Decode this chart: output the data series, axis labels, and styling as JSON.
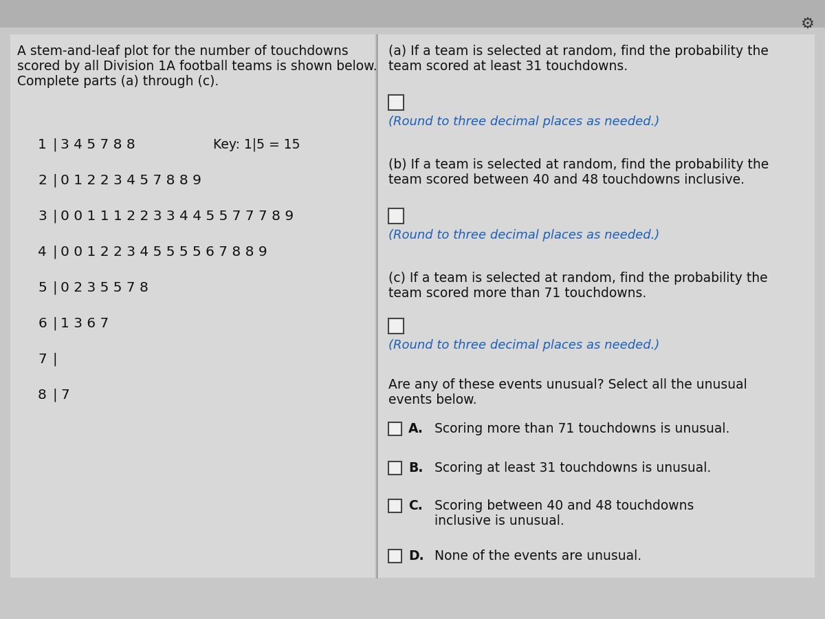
{
  "bg_color": "#c8c8c8",
  "panel_color": "#d8d8d8",
  "left_title": "A stem-and-leaf plot for the number of touchdowns\nscored by all Division 1A football teams is shown below.\nComplete parts (a) through (c).",
  "stem_rows": [
    {
      "stem": "1",
      "bar": "|",
      "leaves": "3 4 5 7 8 8",
      "key": "Key: 1|5 = 15"
    },
    {
      "stem": "2",
      "bar": "|",
      "leaves": "0 1 2 2 3 4 5 7 8 8 9",
      "key": ""
    },
    {
      "stem": "3",
      "bar": "|",
      "leaves": "0 0 1 1 1 2 2 3 3 4 4 5 5 7 7 7 8 9",
      "key": ""
    },
    {
      "stem": "4",
      "bar": "|",
      "leaves": "0 0 1 2 2 3 4 5 5 5 5 6 7 8 8 9",
      "key": ""
    },
    {
      "stem": "5",
      "bar": "|",
      "leaves": "0 2 3 5 5 7 8",
      "key": ""
    },
    {
      "stem": "6",
      "bar": "|",
      "leaves": "1 3 6 7",
      "key": ""
    },
    {
      "stem": "7",
      "bar": "|",
      "leaves": "",
      "key": ""
    },
    {
      "stem": "8",
      "bar": "|",
      "leaves": "7",
      "key": ""
    }
  ],
  "part_a_title": "(a) If a team is selected at random, find the probability the\nteam scored at least 31 touchdowns.",
  "part_a_note": "(Round to three decimal places as needed.)",
  "part_b_title": "(b) If a team is selected at random, find the probability the\nteam scored between 40 and 48 touchdowns inclusive.",
  "part_b_note": "(Round to three decimal places as needed.)",
  "part_c_title": "(c) If a team is selected at random, find the probability the\nteam scored more than 71 touchdowns.",
  "part_c_note": "(Round to three decimal places as needed.)",
  "unusual_prompt": "Are any of these events unusual? Select all the unusual\nevents below.",
  "options": [
    {
      "label": "A.",
      "text": "Scoring more than 71 touchdowns is unusual."
    },
    {
      "label": "B.",
      "text": "Scoring at least 31 touchdowns is unusual."
    },
    {
      "label": "C.",
      "text": "Scoring between 40 and 48 touchdowns\ninclusive is unusual."
    },
    {
      "label": "D.",
      "text": "None of the events are unusual."
    }
  ],
  "text_black": "#111111",
  "text_blue": "#1a5fba",
  "checkbox_fill": "#f0f0f0",
  "checkbox_edge": "#444444",
  "font_size_title": 13.5,
  "font_size_stem": 14.5,
  "font_size_right": 13.5,
  "font_size_note": 13.0,
  "font_size_key": 13.5
}
